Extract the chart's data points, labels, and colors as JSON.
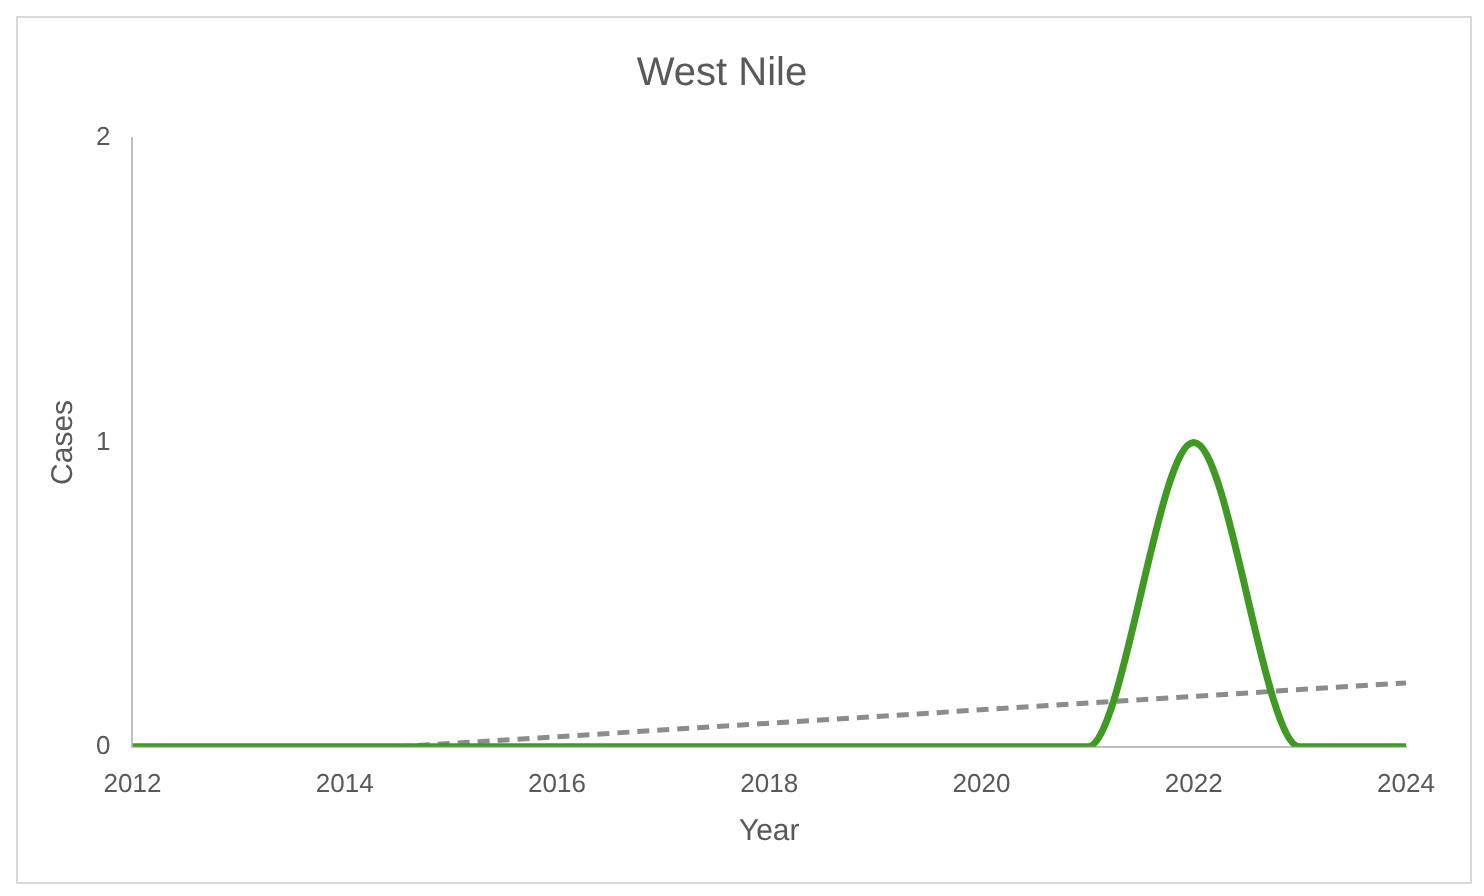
{
  "chart_data": {
    "type": "line",
    "title": "West Nile",
    "xlabel": "Year",
    "ylabel": "Cases",
    "x": [
      2012,
      2013,
      2014,
      2015,
      2016,
      2017,
      2018,
      2019,
      2020,
      2021,
      2022,
      2023,
      2024
    ],
    "series": [
      {
        "color": "#3f9a24",
        "values": [
          0,
          0,
          0,
          0,
          0,
          0,
          0,
          0,
          0,
          0,
          1,
          0,
          0
        ]
      },
      {
        "type": "line",
        "color": "#8c8c8c",
        "line_style": "dashed",
        "x": [
          2014.5,
          2024
        ],
        "values": [
          0,
          0.21
        ]
      }
    ],
    "xlim": [
      2012,
      2024
    ],
    "xticks": [
      2012,
      2014,
      2016,
      2018,
      2020,
      2022,
      2024
    ],
    "ylim": [
      0,
      2
    ],
    "yticks": [
      0,
      1,
      2
    ],
    "grid": false,
    "legend": false,
    "marker": "none"
  }
}
